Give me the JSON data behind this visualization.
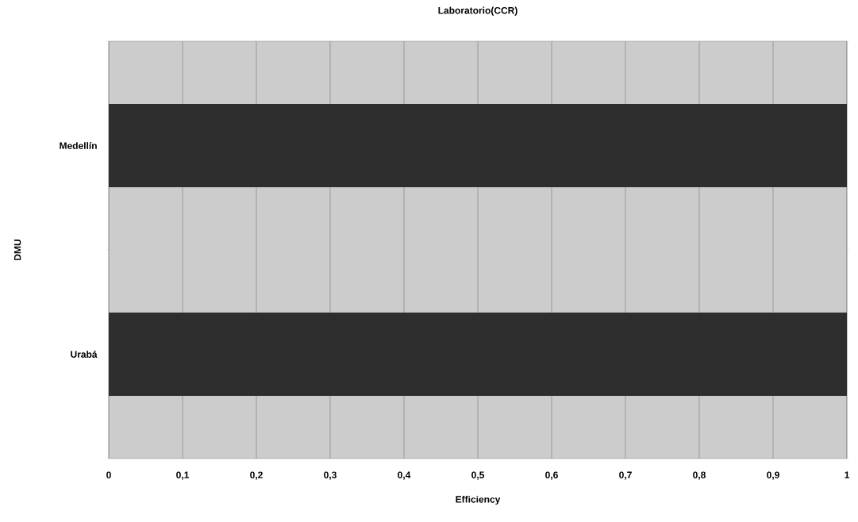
{
  "chart_data": {
    "type": "bar",
    "orientation": "horizontal",
    "title": "Laboratorio(CCR)",
    "xlabel": "Efficiency",
    "ylabel": "DMU",
    "categories": [
      "Medellín",
      "Urabá"
    ],
    "values": [
      1,
      1
    ],
    "color": "#2e2e2e",
    "xlim": [
      0,
      1
    ],
    "xticks": [
      0,
      {
        "value": 0.1,
        "label": "0,1"
      },
      {
        "value": 0.2,
        "label": "0,2"
      },
      {
        "value": 0.3,
        "label": "0,3"
      },
      {
        "value": 0.4,
        "label": "0,4"
      },
      {
        "value": 0.5,
        "label": "0,5"
      },
      {
        "value": 0.6,
        "label": "0,6"
      },
      {
        "value": 0.7,
        "label": "0,7"
      },
      {
        "value": 0.8,
        "label": "0,8"
      },
      {
        "value": 0.9,
        "label": "0,9"
      },
      1
    ],
    "grid": "x"
  }
}
